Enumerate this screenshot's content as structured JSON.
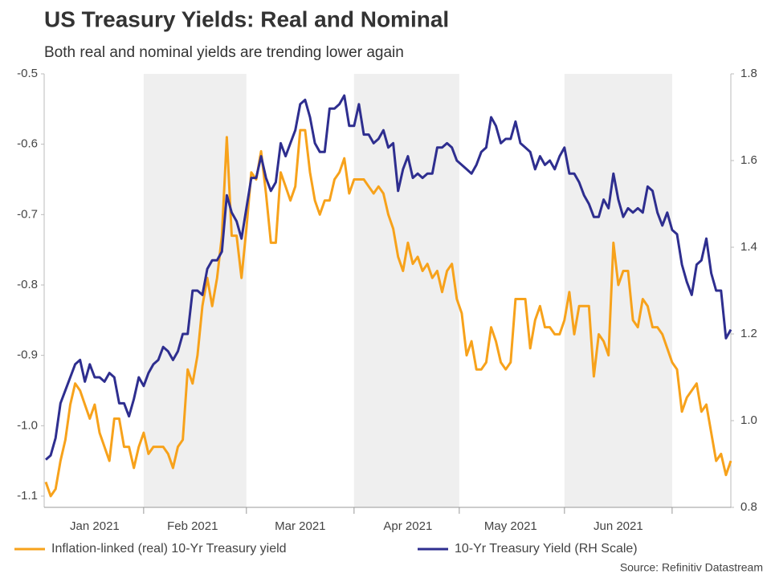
{
  "chart_data": {
    "type": "line",
    "title": "US Treasury Yields: Real and Nominal",
    "subtitle": "Both real and nominal yields are trending lower again",
    "source": "Source: Refinitiv Datastream",
    "categories": [
      null,
      null,
      null,
      null,
      null,
      null,
      null,
      null,
      null,
      null,
      "Jan 2021",
      null,
      null,
      null,
      null,
      null,
      null,
      null,
      null,
      null,
      null,
      null,
      null,
      null,
      null,
      null,
      null,
      null,
      null,
      null,
      "Feb 2021",
      null,
      null,
      null,
      null,
      null,
      null,
      null,
      null,
      null,
      null,
      null,
      null,
      null,
      null,
      null,
      null,
      null,
      null,
      null,
      null,
      null,
      "Mar 2021",
      null,
      null,
      null,
      null,
      null,
      null,
      null,
      null,
      null,
      null,
      null,
      null,
      null,
      null,
      null,
      null,
      null,
      null,
      null,
      null,
      null,
      "Apr 2021",
      null,
      null,
      null,
      null,
      null,
      null,
      null,
      null,
      null,
      null,
      null,
      null,
      null,
      null,
      null,
      null,
      null,
      null,
      null,
      null,
      "May 2021",
      null,
      null,
      null,
      null,
      null,
      null,
      null,
      null,
      null,
      null,
      null,
      null,
      null,
      null,
      null,
      null,
      null,
      null,
      null,
      null,
      null,
      "Jun 2021",
      null,
      null,
      null,
      null,
      null,
      null,
      null,
      null,
      null,
      null,
      null,
      null,
      null,
      null,
      null,
      null,
      null,
      null,
      null,
      null,
      null,
      null,
      null
    ],
    "series": [
      {
        "name": "Inflation-linked (real) 10-Yr Treasury yield",
        "color": "#f7a21b",
        "axis": "y",
        "values": [
          -1.08,
          -1.1,
          -1.09,
          -1.05,
          -1.02,
          -0.97,
          -0.94,
          -0.95,
          -0.97,
          -0.99,
          -0.97,
          -1.01,
          -1.03,
          -1.05,
          -0.99,
          -0.99,
          -1.03,
          -1.03,
          -1.06,
          -1.03,
          -1.01,
          -1.04,
          -1.03,
          -1.03,
          -1.03,
          -1.04,
          -1.06,
          -1.03,
          -1.02,
          -0.92,
          -0.94,
          -0.9,
          -0.83,
          -0.79,
          -0.83,
          -0.79,
          -0.73,
          -0.59,
          -0.73,
          -0.73,
          -0.79,
          -0.72,
          -0.64,
          -0.65,
          -0.61,
          -0.67,
          -0.74,
          -0.74,
          -0.64,
          -0.66,
          -0.68,
          -0.66,
          -0.58,
          -0.58,
          -0.64,
          -0.68,
          -0.7,
          -0.68,
          -0.68,
          -0.65,
          -0.64,
          -0.62,
          -0.67,
          -0.65,
          -0.65,
          -0.65,
          -0.66,
          -0.67,
          -0.66,
          -0.67,
          -0.7,
          -0.72,
          -0.76,
          -0.78,
          -0.74,
          -0.77,
          -0.76,
          -0.78,
          -0.77,
          -0.79,
          -0.78,
          -0.81,
          -0.78,
          -0.77,
          -0.82,
          -0.84,
          -0.9,
          -0.88,
          -0.92,
          -0.92,
          -0.91,
          -0.86,
          -0.88,
          -0.91,
          -0.92,
          -0.91,
          -0.82,
          -0.82,
          -0.82,
          -0.89,
          -0.85,
          -0.83,
          -0.86,
          -0.86,
          -0.87,
          -0.87,
          -0.85,
          -0.81,
          -0.87,
          -0.83,
          -0.83,
          -0.83,
          -0.93,
          -0.87,
          -0.88,
          -0.9,
          -0.74,
          -0.8,
          -0.78,
          -0.78,
          -0.85,
          -0.86,
          -0.82,
          -0.83,
          -0.86,
          -0.86,
          -0.87,
          -0.89,
          -0.91,
          -0.92,
          -0.98,
          -0.96,
          -0.95,
          -0.94,
          -0.98,
          -0.97,
          -1.01,
          -1.05,
          -1.04,
          -1.07,
          -1.05
        ]
      },
      {
        "name": "10-Yr Treasury Yield (RH Scale)",
        "color": "#2e2e8f",
        "axis": "y2",
        "values": [
          0.91,
          0.92,
          0.96,
          1.04,
          1.07,
          1.1,
          1.13,
          1.14,
          1.09,
          1.13,
          1.1,
          1.1,
          1.09,
          1.11,
          1.1,
          1.04,
          1.04,
          1.01,
          1.05,
          1.1,
          1.08,
          1.11,
          1.13,
          1.14,
          1.17,
          1.16,
          1.14,
          1.16,
          1.2,
          1.2,
          1.3,
          1.3,
          1.29,
          1.35,
          1.37,
          1.37,
          1.39,
          1.52,
          1.48,
          1.46,
          1.42,
          1.49,
          1.56,
          1.56,
          1.61,
          1.56,
          1.53,
          1.55,
          1.64,
          1.61,
          1.64,
          1.67,
          1.73,
          1.74,
          1.7,
          1.64,
          1.62,
          1.62,
          1.72,
          1.72,
          1.73,
          1.75,
          1.68,
          1.68,
          1.73,
          1.66,
          1.66,
          1.64,
          1.65,
          1.67,
          1.63,
          1.64,
          1.53,
          1.58,
          1.61,
          1.56,
          1.57,
          1.56,
          1.57,
          1.57,
          1.63,
          1.63,
          1.64,
          1.63,
          1.6,
          1.59,
          1.58,
          1.57,
          1.59,
          1.62,
          1.63,
          1.7,
          1.68,
          1.64,
          1.65,
          1.65,
          1.69,
          1.64,
          1.63,
          1.62,
          1.58,
          1.61,
          1.59,
          1.6,
          1.58,
          1.61,
          1.63,
          1.57,
          1.57,
          1.55,
          1.52,
          1.5,
          1.47,
          1.47,
          1.51,
          1.49,
          1.57,
          1.51,
          1.47,
          1.49,
          1.48,
          1.49,
          1.48,
          1.54,
          1.53,
          1.48,
          1.45,
          1.48,
          1.44,
          1.43,
          1.36,
          1.32,
          1.29,
          1.36,
          1.37,
          1.42,
          1.34,
          1.3,
          1.3,
          1.19,
          1.21
        ]
      }
    ],
    "ylim": [
      -1.116,
      -0.5
    ],
    "yticks": [
      -0.5,
      -0.6,
      -0.7,
      -0.8,
      -0.9,
      {
        "value": -1,
        "label": "-1.0"
      },
      -1.1
    ],
    "y2lim": [
      0.8,
      1.8
    ],
    "y2ticks": [
      1.8,
      1.6,
      1.4,
      1.2,
      {
        "value": 1,
        "label": "1.0"
      },
      0.8
    ],
    "shade_color": "#efefef"
  }
}
